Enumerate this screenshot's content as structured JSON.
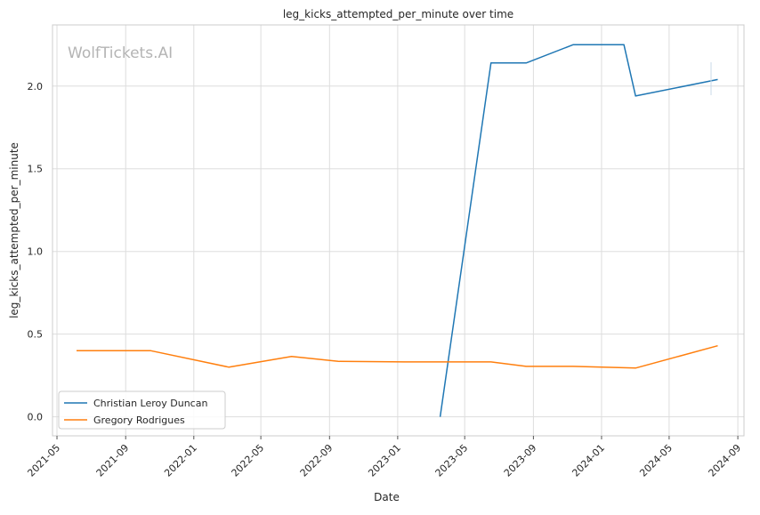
{
  "chart_data": {
    "type": "line",
    "title": "leg_kicks_attempted_per_minute over time",
    "xlabel": "Date",
    "ylabel": "leg_kicks_attempted_per_minute",
    "watermark": "WolfTickets.AI",
    "x_ticks": [
      "2021-05",
      "2021-09",
      "2022-01",
      "2022-05",
      "2022-09",
      "2023-01",
      "2023-05",
      "2023-09",
      "2024-01",
      "2024-05",
      "2024-09"
    ],
    "y_ticks": [
      "0.0",
      "0.5",
      "1.0",
      "1.5",
      "2.0"
    ],
    "xlim": [
      "2021-04-23",
      "2024-09-12"
    ],
    "ylim": [
      -0.115,
      2.37
    ],
    "grid": true,
    "legend_position": "bottom-left",
    "series": [
      {
        "name": "Christian Leroy Duncan",
        "color": "#1f77b4",
        "points": [
          {
            "x": "2023-03-18",
            "y": 0.0
          },
          {
            "x": "2023-06-17",
            "y": 2.14
          },
          {
            "x": "2023-08-19",
            "y": 2.14
          },
          {
            "x": "2023-11-11",
            "y": 2.25
          },
          {
            "x": "2024-02-10",
            "y": 2.25
          },
          {
            "x": "2024-03-02",
            "y": 1.94
          },
          {
            "x": "2024-07-27",
            "y": 2.04
          }
        ]
      },
      {
        "name": "Gregory Rodrigues",
        "color": "#ff7f0e",
        "points": [
          {
            "x": "2021-06-05",
            "y": 0.4
          },
          {
            "x": "2021-10-16",
            "y": 0.4
          },
          {
            "x": "2022-03-05",
            "y": 0.3
          },
          {
            "x": "2022-06-25",
            "y": 0.365
          },
          {
            "x": "2022-09-17",
            "y": 0.335
          },
          {
            "x": "2023-01-14",
            "y": 0.332
          },
          {
            "x": "2023-03-18",
            "y": 0.332
          },
          {
            "x": "2023-06-17",
            "y": 0.332
          },
          {
            "x": "2023-08-19",
            "y": 0.305
          },
          {
            "x": "2023-11-11",
            "y": 0.305
          },
          {
            "x": "2024-03-02",
            "y": 0.295
          },
          {
            "x": "2024-07-27",
            "y": 0.43
          }
        ]
      }
    ]
  }
}
